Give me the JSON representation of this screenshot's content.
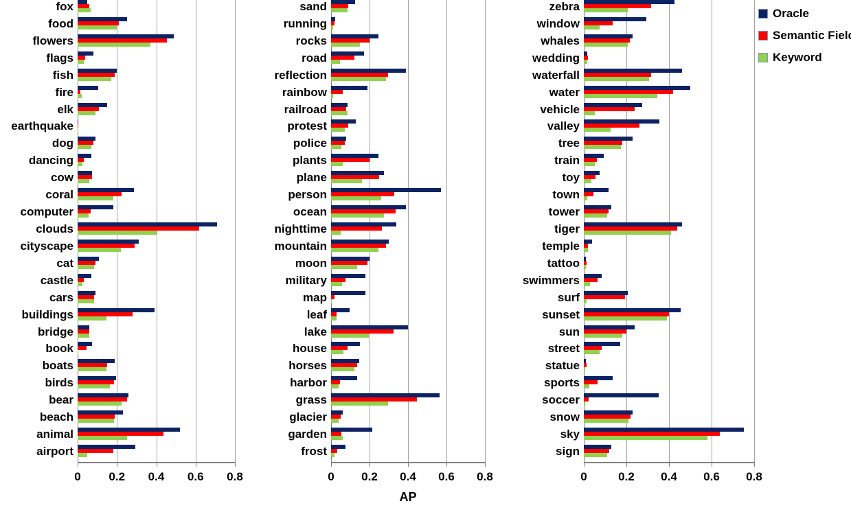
{
  "figure": {
    "xlabel": "AP",
    "xlim": [
      0,
      0.8
    ],
    "xticks": [
      0,
      0.2,
      0.4,
      0.6,
      0.8
    ],
    "xtick_labels": [
      "0",
      "0.2",
      "0.4",
      "0.6",
      "0.8"
    ],
    "grid": "vertical-on",
    "colors": {
      "oracle": "#0d2262",
      "semantic_field": "#ff0000",
      "keyword": "#92d050",
      "gridline": "#a3a3a3",
      "axis": "#808080",
      "text": "#000000"
    }
  },
  "legend": {
    "position": "top-right",
    "items": [
      {
        "label": "Oracle",
        "color": "#0d2262"
      },
      {
        "label": "Semantic Field",
        "color": "#ff0000"
      },
      {
        "label": "Keyword",
        "color": "#92d050"
      }
    ]
  },
  "chart_data": [
    {
      "type": "bar",
      "orientation": "horizontal",
      "xlim": [
        0,
        0.8
      ],
      "xticks": [
        0,
        0.2,
        0.4,
        0.6,
        0.8
      ],
      "categories": [
        "fox",
        "food",
        "flowers",
        "flags",
        "fish",
        "fire",
        "elk",
        "earthquake",
        "dog",
        "dancing",
        "cow",
        "coral",
        "computer",
        "clouds",
        "cityscape",
        "cat",
        "castle",
        "cars",
        "buildings",
        "bridge",
        "book",
        "boats",
        "birds",
        "bear",
        "beach",
        "animal",
        "airport"
      ],
      "series": [
        {
          "name": "Oracle",
          "color": "#0d2262",
          "values": [
            0.05,
            0.25,
            0.49,
            0.08,
            0.2,
            0.105,
            0.15,
            0.005,
            0.09,
            0.07,
            0.075,
            0.285,
            0.18,
            0.71,
            0.31,
            0.11,
            0.07,
            0.09,
            0.39,
            0.06,
            0.075,
            0.19,
            0.195,
            0.26,
            0.23,
            0.52,
            0.295
          ]
        },
        {
          "name": "Semantic Field",
          "color": "#ff0000",
          "values": [
            0.06,
            0.21,
            0.455,
            0.04,
            0.19,
            0.015,
            0.11,
            0.005,
            0.08,
            0.03,
            0.075,
            0.225,
            0.065,
            0.62,
            0.29,
            0.09,
            0.03,
            0.085,
            0.28,
            0.06,
            0.045,
            0.15,
            0.185,
            0.25,
            0.19,
            0.435,
            0.18
          ]
        },
        {
          "name": "Keyword",
          "color": "#92d050",
          "values": [
            0.065,
            0.2,
            0.37,
            0.03,
            0.17,
            0.02,
            0.09,
            0.005,
            0.07,
            0.025,
            0.06,
            0.18,
            0.055,
            0.4,
            0.22,
            0.085,
            0.025,
            0.085,
            0.145,
            0.06,
            0.005,
            0.148,
            0.165,
            0.225,
            0.185,
            0.25,
            0.05
          ]
        }
      ]
    },
    {
      "type": "bar",
      "orientation": "horizontal",
      "xlim": [
        0,
        0.8
      ],
      "xticks": [
        0,
        0.2,
        0.4,
        0.6,
        0.8
      ],
      "categories": [
        "sand",
        "running",
        "rocks",
        "road",
        "reflection",
        "rainbow",
        "railroad",
        "protest",
        "police",
        "plants",
        "plane",
        "person",
        "ocean",
        "nighttime",
        "mountain",
        "moon",
        "military",
        "map",
        "leaf",
        "lake",
        "house",
        "horses",
        "harbor",
        "grass",
        "glacier",
        "garden",
        "frost"
      ],
      "series": [
        {
          "name": "Oracle",
          "color": "#0d2262",
          "values": [
            0.125,
            0.02,
            0.245,
            0.17,
            0.39,
            0.19,
            0.087,
            0.13,
            0.077,
            0.245,
            0.275,
            0.57,
            0.39,
            0.34,
            0.3,
            0.2,
            0.178,
            0.18,
            0.095,
            0.4,
            0.15,
            0.145,
            0.135,
            0.565,
            0.06,
            0.215,
            0.075
          ]
        },
        {
          "name": "Semantic Field",
          "color": "#ff0000",
          "values": [
            0.09,
            0.017,
            0.2,
            0.12,
            0.295,
            0.06,
            0.08,
            0.09,
            0.07,
            0.2,
            0.25,
            0.33,
            0.335,
            0.265,
            0.285,
            0.19,
            0.075,
            0.017,
            0.03,
            0.325,
            0.085,
            0.135,
            0.045,
            0.445,
            0.05,
            0.055,
            0.032
          ]
        },
        {
          "name": "Keyword",
          "color": "#92d050",
          "values": [
            0.085,
            0.012,
            0.15,
            0.045,
            0.285,
            0.012,
            0.086,
            0.07,
            0.055,
            0.06,
            0.16,
            0.26,
            0.275,
            0.05,
            0.245,
            0.135,
            0.057,
            0.003,
            0.027,
            0.195,
            0.065,
            0.12,
            0.04,
            0.295,
            0.04,
            0.06,
            0.018
          ]
        }
      ]
    },
    {
      "type": "bar",
      "orientation": "horizontal",
      "xlim": [
        0,
        0.8
      ],
      "xticks": [
        0,
        0.2,
        0.4,
        0.6,
        0.8
      ],
      "categories": [
        "zebra",
        "window",
        "whales",
        "wedding",
        "waterfall",
        "water",
        "vehicle",
        "valley",
        "tree",
        "train",
        "toy",
        "town",
        "tower",
        "tiger",
        "temple",
        "tattoo",
        "swimmers",
        "surf",
        "sunset",
        "sun",
        "street",
        "statue",
        "sports",
        "soccer",
        "snow",
        "sky",
        "sign"
      ],
      "series": [
        {
          "name": "Oracle",
          "color": "#0d2262",
          "values": [
            0.425,
            0.295,
            0.23,
            0.016,
            0.46,
            0.5,
            0.275,
            0.355,
            0.23,
            0.095,
            0.075,
            0.115,
            0.13,
            0.46,
            0.04,
            0.011,
            0.085,
            0.205,
            0.455,
            0.24,
            0.17,
            0.011,
            0.135,
            0.35,
            0.23,
            0.75,
            0.13
          ]
        },
        {
          "name": "Semantic Field",
          "color": "#ff0000",
          "values": [
            0.315,
            0.135,
            0.215,
            0.018,
            0.317,
            0.42,
            0.24,
            0.26,
            0.18,
            0.06,
            0.055,
            0.045,
            0.115,
            0.44,
            0.02,
            0.013,
            0.065,
            0.195,
            0.4,
            0.2,
            0.085,
            0.014,
            0.065,
            0.024,
            0.22,
            0.64,
            0.12
          ]
        },
        {
          "name": "Keyword",
          "color": "#92d050",
          "values": [
            0.205,
            0.075,
            0.205,
            0.016,
            0.308,
            0.345,
            0.05,
            0.125,
            0.175,
            0.05,
            0.035,
            0.016,
            0.11,
            0.41,
            0.018,
            0.009,
            0.03,
            0.013,
            0.39,
            0.18,
            0.075,
            0.008,
            0.027,
            0.005,
            0.21,
            0.58,
            0.11
          ]
        }
      ]
    }
  ]
}
